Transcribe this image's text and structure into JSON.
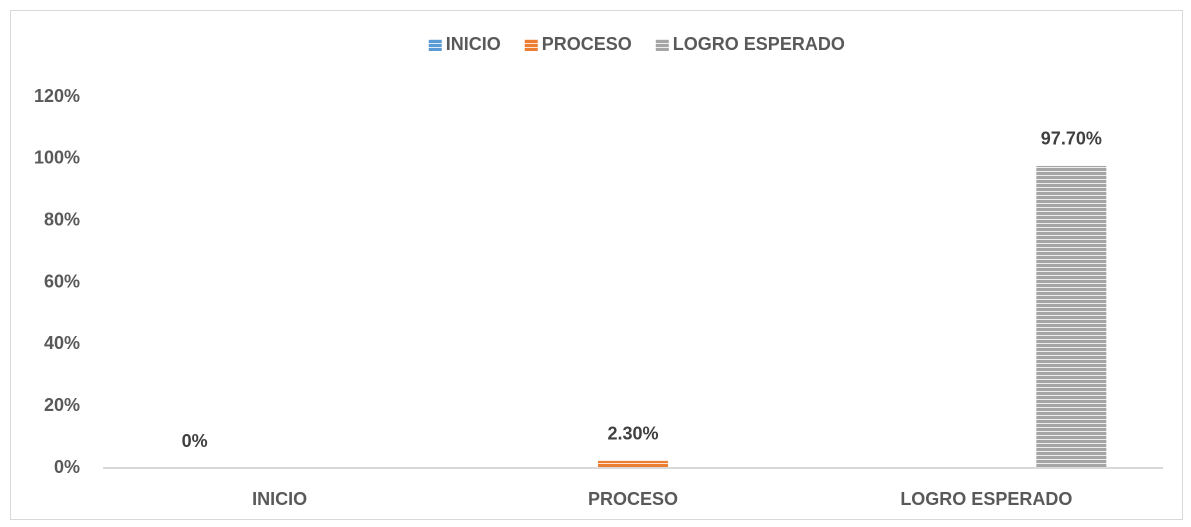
{
  "chart_data": {
    "type": "bar",
    "categories": [
      "INICIO",
      "PROCESO",
      "LOGRO ESPERADO"
    ],
    "series": [
      {
        "name": "INICIO",
        "color": "#5b9bd5",
        "values": [
          0,
          null,
          null
        ],
        "value_labels": [
          "0%",
          null,
          null
        ]
      },
      {
        "name": "PROCESO",
        "color": "#ed7d31",
        "values": [
          null,
          2.3,
          null
        ],
        "value_labels": [
          null,
          "2.30%",
          null
        ]
      },
      {
        "name": "LOGRO ESPERADO",
        "color": "#a5a5a5",
        "values": [
          null,
          null,
          97.7
        ],
        "value_labels": [
          null,
          null,
          "97.70%"
        ]
      }
    ],
    "ylim": [
      0,
      120
    ],
    "yticks": [
      {
        "value": 0,
        "label": "0%"
      },
      {
        "value": 20,
        "label": "20%"
      },
      {
        "value": 40,
        "label": "40%"
      },
      {
        "value": 60,
        "label": "60%"
      },
      {
        "value": 80,
        "label": "80%"
      },
      {
        "value": 100,
        "label": "100%"
      },
      {
        "value": 120,
        "label": "120%"
      }
    ],
    "grid": false,
    "legend": "top"
  }
}
